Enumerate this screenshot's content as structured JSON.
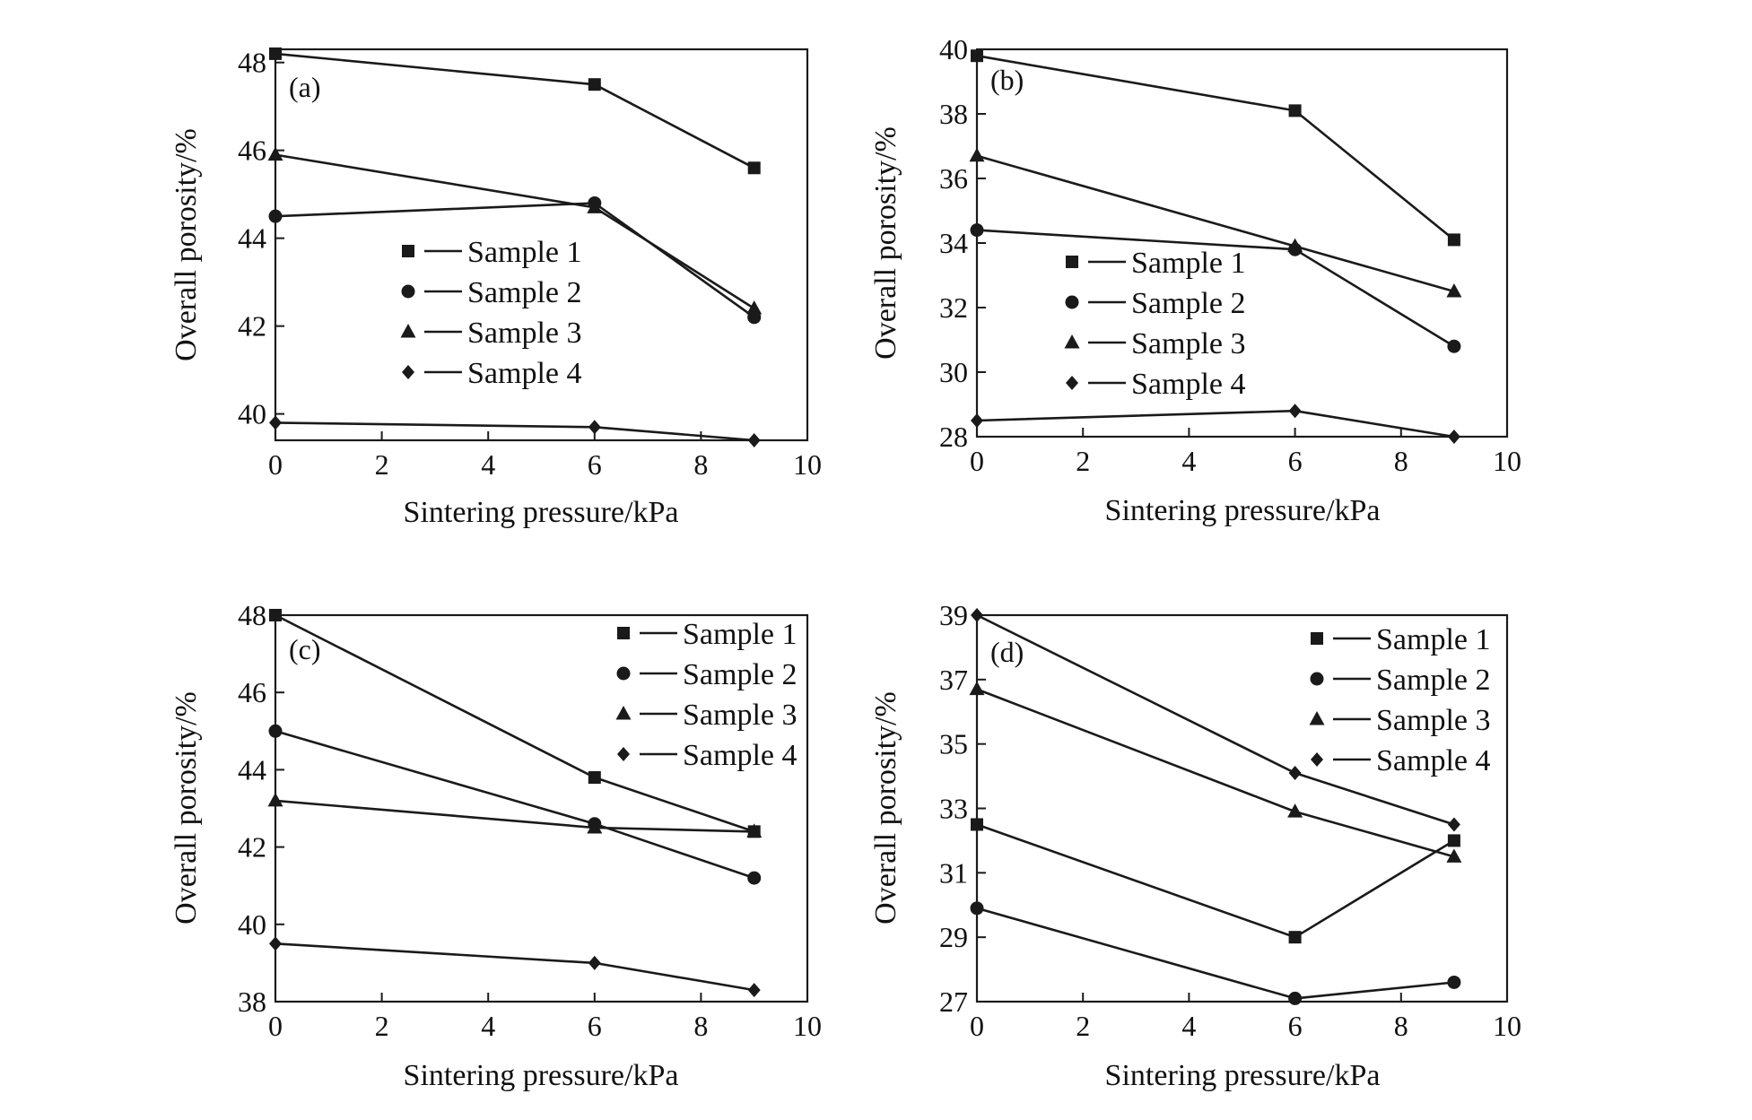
{
  "figure": {
    "background": "#ffffff",
    "line_color": "#1a1a1a"
  },
  "chart_data": [
    {
      "type": "line",
      "panel_label": "(a)",
      "xlabel": "Sintering pressure/kPa",
      "ylabel": "Overall porosity/%",
      "xlim": [
        0,
        10
      ],
      "ylim": [
        39.4,
        48.3
      ],
      "xticks": [
        0,
        2,
        4,
        6,
        8,
        10
      ],
      "yticks": [
        40,
        42,
        44,
        46,
        48
      ],
      "grid": false,
      "legend_position": "center-left",
      "x": [
        0,
        6,
        9
      ],
      "series": [
        {
          "name": "Sample 1",
          "marker": "square",
          "values": [
            48.2,
            47.5,
            45.6
          ]
        },
        {
          "name": "Sample 2",
          "marker": "circle",
          "values": [
            44.5,
            44.8,
            42.2
          ]
        },
        {
          "name": "Sample 3",
          "marker": "triangle",
          "values": [
            45.9,
            44.7,
            42.4
          ]
        },
        {
          "name": "Sample 4",
          "marker": "diamond",
          "values": [
            39.8,
            39.7,
            39.4
          ]
        }
      ]
    },
    {
      "type": "line",
      "panel_label": "(b)",
      "xlabel": "Sintering pressure/kPa",
      "ylabel": "Overall porosity/%",
      "xlim": [
        0,
        10
      ],
      "ylim": [
        28,
        40
      ],
      "xticks": [
        0,
        2,
        4,
        6,
        8,
        10
      ],
      "yticks": [
        28,
        30,
        32,
        34,
        36,
        38,
        40
      ],
      "grid": false,
      "legend_position": "center-left",
      "x": [
        0,
        6,
        9
      ],
      "series": [
        {
          "name": "Sample 1",
          "marker": "square",
          "values": [
            39.8,
            38.1,
            34.1
          ]
        },
        {
          "name": "Sample 2",
          "marker": "circle",
          "values": [
            34.4,
            33.8,
            30.8
          ]
        },
        {
          "name": "Sample 3",
          "marker": "triangle",
          "values": [
            36.7,
            33.9,
            32.5
          ]
        },
        {
          "name": "Sample 4",
          "marker": "diamond",
          "values": [
            28.5,
            28.8,
            28.0
          ]
        }
      ]
    },
    {
      "type": "line",
      "panel_label": "(c)",
      "xlabel": "Sintering pressure/kPa",
      "ylabel": "Overall porosity/%",
      "xlim": [
        0,
        10
      ],
      "ylim": [
        38,
        48
      ],
      "xticks": [
        0,
        2,
        4,
        6,
        8,
        10
      ],
      "yticks": [
        38,
        40,
        42,
        44,
        46,
        48
      ],
      "grid": false,
      "legend_position": "top-right",
      "x": [
        0,
        6,
        9
      ],
      "series": [
        {
          "name": "Sample 1",
          "marker": "square",
          "values": [
            48.0,
            43.8,
            42.4
          ]
        },
        {
          "name": "Sample 2",
          "marker": "circle",
          "values": [
            45.0,
            42.6,
            41.2
          ]
        },
        {
          "name": "Sample 3",
          "marker": "triangle",
          "values": [
            43.2,
            42.5,
            42.4
          ]
        },
        {
          "name": "Sample 4",
          "marker": "diamond",
          "values": [
            39.5,
            39.0,
            38.3
          ]
        }
      ]
    },
    {
      "type": "line",
      "panel_label": "(d)",
      "xlabel": "Sintering pressure/kPa",
      "ylabel": "Overall porosity/%",
      "xlim": [
        0,
        10
      ],
      "ylim": [
        27,
        39
      ],
      "xticks": [
        0,
        2,
        4,
        6,
        8,
        10
      ],
      "yticks": [
        27,
        29,
        31,
        33,
        35,
        37,
        39
      ],
      "grid": false,
      "legend_position": "top-right",
      "x": [
        0,
        6,
        9
      ],
      "series": [
        {
          "name": "Sample 1",
          "marker": "square",
          "values": [
            32.5,
            29.0,
            32.0
          ]
        },
        {
          "name": "Sample 2",
          "marker": "circle",
          "values": [
            29.9,
            27.1,
            27.6
          ]
        },
        {
          "name": "Sample 3",
          "marker": "triangle",
          "values": [
            36.7,
            32.9,
            31.5
          ]
        },
        {
          "name": "Sample 4",
          "marker": "diamond",
          "values": [
            39.0,
            34.1,
            32.5
          ]
        }
      ]
    }
  ]
}
